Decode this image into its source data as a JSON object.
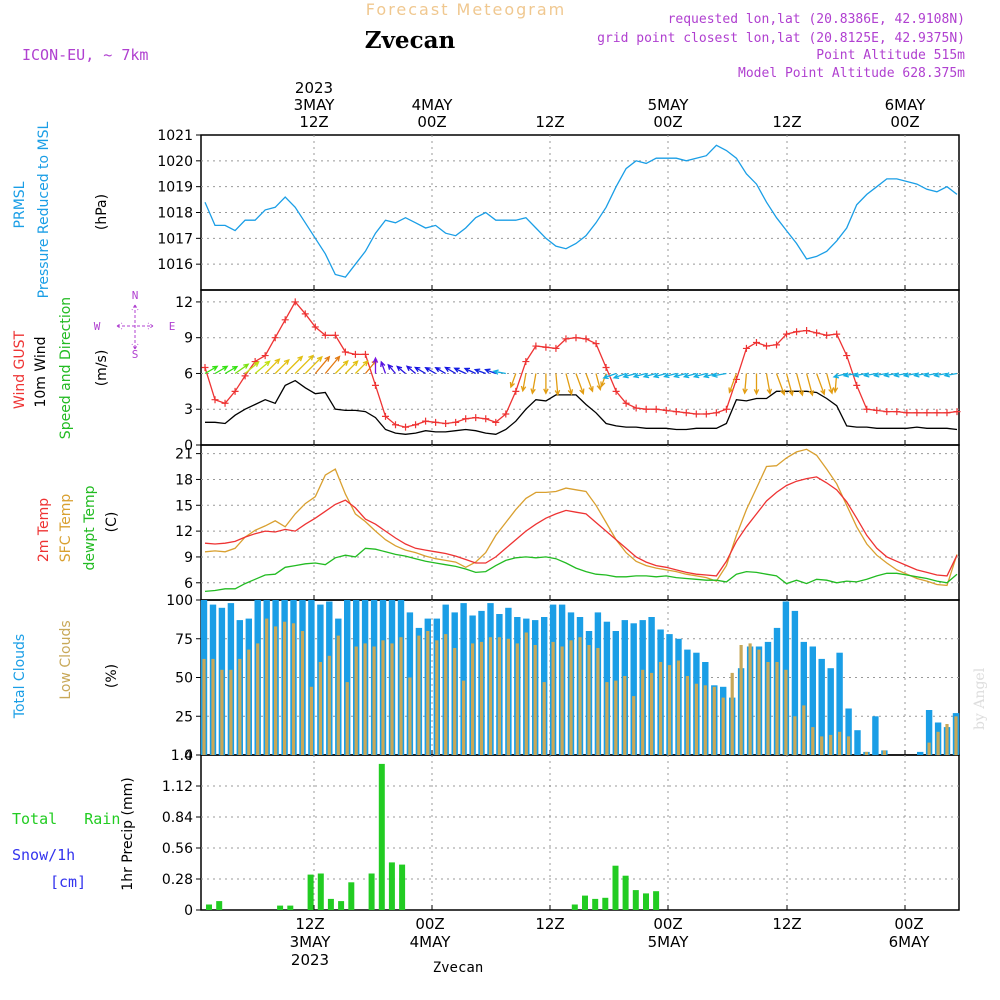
{
  "header": {
    "super_title": "Forecast Meteogram",
    "location": "Zvecan",
    "model": "ICON-EU, ~ 7km",
    "requested": "requested lon,lat (20.8386E, 42.9108N)",
    "grid_point": "grid point closest lon,lat (20.8125E, 42.9375N)",
    "point_altitude": "Point Altitude 515m",
    "model_altitude": "Model Point Altitude 628.375m",
    "footer_name": "Zvecan",
    "watermark": "by Angel"
  },
  "time_axis": {
    "top": [
      {
        "line1": "2023",
        "line2": "3MAY",
        "line3": "12Z"
      },
      {
        "line1": "",
        "line2": "4MAY",
        "line3": "00Z"
      },
      {
        "line1": "",
        "line2": "",
        "line3": "12Z"
      },
      {
        "line1": "",
        "line2": "5MAY",
        "line3": "00Z"
      },
      {
        "line1": "",
        "line2": "",
        "line3": "12Z"
      },
      {
        "line1": "",
        "line2": "6MAY",
        "line3": "00Z"
      }
    ],
    "bottom": [
      {
        "line1": "12Z",
        "line2": "3MAY",
        "line3": "2023"
      },
      {
        "line1": "00Z",
        "line2": "4MAY",
        "line3": ""
      },
      {
        "line1": "12Z",
        "line2": "",
        "line3": ""
      },
      {
        "line1": "00Z",
        "line2": "5MAY",
        "line3": ""
      },
      {
        "line1": "12Z",
        "line2": "",
        "line3": ""
      },
      {
        "line1": "00Z",
        "line2": "6MAY",
        "line3": ""
      }
    ]
  },
  "colors": {
    "pressure": "#1a9ee6",
    "gust": "#ee3333",
    "wind": "#000000",
    "wind_dir_label": "#22bb22",
    "temp2m": "#ee3333",
    "sfc_temp": "#d9a030",
    "dewpt": "#22bb22",
    "total_clouds": "#1a9ee6",
    "low_clouds": "#c8a858",
    "rain": "#22cc22",
    "snow_label": "#3333ee",
    "header_purple": "#b040d0",
    "super_title": "#f0c890"
  },
  "chart_data": [
    {
      "type": "line",
      "panel": "pressure",
      "ylabel_lines": [
        "PRMSL",
        "Pressure Reduced to MSL"
      ],
      "unit": "(hPa)",
      "ylim": [
        1015,
        1021
      ],
      "ticks": [
        1016,
        1017,
        1018,
        1019,
        1020,
        1021
      ],
      "series": [
        {
          "name": "PRMSL",
          "values": [
            1018.4,
            1017.5,
            1017.5,
            1017.3,
            1017.7,
            1017.7,
            1018.1,
            1018.2,
            1018.6,
            1018.2,
            1017.6,
            1017.0,
            1016.4,
            1015.6,
            1015.5,
            1016.0,
            1016.5,
            1017.2,
            1017.7,
            1017.6,
            1017.8,
            1017.6,
            1017.4,
            1017.5,
            1017.2,
            1017.1,
            1017.4,
            1017.8,
            1018.0,
            1017.7,
            1017.7,
            1017.7,
            1017.8,
            1017.4,
            1017.0,
            1016.7,
            1016.6,
            1016.8,
            1017.1,
            1017.6,
            1018.2,
            1019.0,
            1019.7,
            1020.0,
            1019.9,
            1020.1,
            1020.1,
            1020.1,
            1020.0,
            1020.1,
            1020.2,
            1020.6,
            1020.4,
            1020.1,
            1019.5,
            1019.1,
            1018.4,
            1017.8,
            1017.3,
            1016.8,
            1016.2,
            1016.3,
            1016.5,
            1016.9,
            1017.4,
            1018.3,
            1018.7,
            1019.0,
            1019.3,
            1019.3,
            1019.2,
            1019.1,
            1018.9,
            1018.8,
            1019.0,
            1018.7
          ]
        }
      ]
    },
    {
      "type": "line",
      "panel": "wind",
      "ylabel_lines": [
        "Wind GUST",
        "10m Wind",
        "Speed and Direction"
      ],
      "unit": "(m/s)",
      "compass": {
        "n": "N",
        "s": "S",
        "w": "W",
        "e": "E"
      },
      "ylim": [
        0,
        13
      ],
      "ticks": [
        0,
        3,
        6,
        9,
        12
      ],
      "series": [
        {
          "name": "Wind GUST",
          "values": [
            6.5,
            3.8,
            3.5,
            4.5,
            5.8,
            7.0,
            7.5,
            9.0,
            10.5,
            12.0,
            11.0,
            9.9,
            9.2,
            9.2,
            7.8,
            7.6,
            7.6,
            5.0,
            2.4,
            1.7,
            1.5,
            1.7,
            2.0,
            1.9,
            1.8,
            1.9,
            2.2,
            2.3,
            2.2,
            1.9,
            2.6,
            4.5,
            7.0,
            8.3,
            8.2,
            8.1,
            8.9,
            9.0,
            8.9,
            8.5,
            6.5,
            4.5,
            3.5,
            3.1,
            3.0,
            3.0,
            2.9,
            2.8,
            2.7,
            2.6,
            2.6,
            2.7,
            3.0,
            5.5,
            8.1,
            8.6,
            8.3,
            8.4,
            9.3,
            9.5,
            9.6,
            9.4,
            9.2,
            9.3,
            7.5,
            5.0,
            3.0,
            2.9,
            2.8,
            2.8,
            2.7,
            2.7,
            2.7,
            2.7,
            2.7,
            2.8
          ]
        },
        {
          "name": "10m Wind",
          "values": [
            1.9,
            1.9,
            1.8,
            2.5,
            3.0,
            3.4,
            3.8,
            3.5,
            5.0,
            5.4,
            4.8,
            4.3,
            4.4,
            3.0,
            2.9,
            2.9,
            2.8,
            2.3,
            1.3,
            1.0,
            0.9,
            1.0,
            1.2,
            1.1,
            1.1,
            1.2,
            1.3,
            1.2,
            1.0,
            0.9,
            1.3,
            2.0,
            3.0,
            3.8,
            3.7,
            4.2,
            4.2,
            4.2,
            3.4,
            2.7,
            1.8,
            1.6,
            1.5,
            1.5,
            1.4,
            1.4,
            1.4,
            1.3,
            1.3,
            1.4,
            1.4,
            1.4,
            1.8,
            3.8,
            3.7,
            3.9,
            3.9,
            4.5,
            4.5,
            4.5,
            4.5,
            4.4,
            3.9,
            3.3,
            1.6,
            1.5,
            1.5,
            1.4,
            1.4,
            1.4,
            1.4,
            1.5,
            1.4,
            1.4,
            1.4,
            1.3
          ]
        }
      ],
      "direction_deg": [
        240,
        240,
        240,
        235,
        230,
        230,
        225,
        225,
        225,
        225,
        225,
        220,
        220,
        225,
        225,
        225,
        220,
        180,
        160,
        140,
        130,
        130,
        120,
        120,
        120,
        120,
        115,
        115,
        110,
        110,
        100,
        20,
        10,
        10,
        0,
        355,
        345,
        340,
        340,
        345,
        20,
        70,
        70,
        75,
        75,
        75,
        75,
        75,
        75,
        75,
        75,
        75,
        80,
        20,
        5,
        0,
        350,
        340,
        345,
        345,
        345,
        340,
        345,
        5,
        75,
        80,
        80,
        80,
        80,
        80,
        80,
        80,
        80,
        80,
        80,
        80
      ]
    },
    {
      "type": "line",
      "panel": "temperature",
      "ylabel_lines": [
        "2m Temp",
        "SFC Temp",
        "dewpt Temp"
      ],
      "unit": "(C)",
      "ylim": [
        4,
        22
      ],
      "ticks": [
        6,
        9,
        12,
        15,
        18,
        21
      ],
      "series": [
        {
          "name": "2m Temp",
          "values": [
            10.6,
            10.5,
            10.6,
            10.8,
            11.3,
            11.7,
            12.0,
            11.9,
            12.2,
            12.0,
            12.8,
            13.5,
            14.3,
            15.1,
            15.6,
            14.7,
            13.4,
            12.8,
            12.0,
            11.2,
            10.5,
            10.0,
            9.8,
            9.6,
            9.4,
            9.1,
            8.7,
            8.3,
            8.3,
            9.0,
            10.0,
            11.0,
            12.0,
            12.8,
            13.5,
            14.0,
            14.4,
            14.2,
            14.0,
            13.0,
            12.0,
            11.0,
            10.0,
            9.0,
            8.4,
            8.0,
            7.8,
            7.5,
            7.2,
            7.0,
            6.9,
            6.8,
            8.5,
            10.8,
            12.5,
            14.0,
            15.5,
            16.5,
            17.3,
            17.8,
            18.1,
            18.3,
            17.6,
            16.8,
            15.4,
            13.5,
            11.5,
            10.0,
            9.0,
            8.5,
            8.0,
            7.5,
            7.2,
            6.9,
            6.8,
            9.2
          ]
        },
        {
          "name": "SFC Temp",
          "values": [
            9.6,
            9.7,
            9.6,
            10.0,
            11.3,
            12.1,
            12.6,
            13.2,
            12.5,
            14.0,
            15.2,
            16.0,
            18.5,
            19.2,
            16.3,
            14.0,
            13.1,
            12.0,
            11.0,
            10.3,
            9.8,
            9.5,
            9.1,
            8.8,
            8.6,
            8.4,
            7.8,
            8.4,
            9.5,
            11.5,
            13.0,
            14.5,
            15.8,
            16.5,
            16.5,
            16.6,
            17.0,
            16.8,
            16.6,
            15.0,
            13.0,
            11.0,
            9.5,
            8.5,
            8.0,
            7.7,
            7.5,
            7.3,
            7.0,
            6.8,
            6.6,
            6.2,
            8.0,
            11.5,
            14.5,
            17.0,
            19.5,
            19.6,
            20.5,
            21.2,
            21.5,
            20.8,
            19.2,
            17.5,
            15.0,
            12.5,
            10.5,
            9.2,
            8.3,
            7.5,
            7.0,
            6.5,
            6.2,
            5.8,
            5.7,
            9.3
          ]
        },
        {
          "name": "dewpt Temp",
          "values": [
            5.0,
            5.1,
            5.3,
            5.3,
            5.9,
            6.4,
            6.9,
            7.0,
            7.8,
            8.0,
            8.2,
            8.3,
            8.1,
            8.9,
            9.2,
            9.0,
            10.0,
            9.9,
            9.6,
            9.3,
            9.1,
            8.8,
            8.5,
            8.3,
            8.1,
            7.9,
            7.6,
            7.2,
            7.3,
            8.0,
            8.6,
            8.9,
            9.0,
            8.9,
            9.0,
            8.8,
            8.3,
            7.7,
            7.3,
            7.0,
            6.9,
            6.7,
            6.7,
            6.8,
            6.8,
            6.7,
            6.8,
            6.6,
            6.5,
            6.4,
            6.3,
            6.3,
            6.1,
            7.0,
            7.3,
            7.2,
            7.0,
            6.8,
            5.9,
            6.3,
            5.9,
            6.4,
            6.3,
            6.0,
            6.2,
            6.1,
            6.4,
            6.8,
            7.1,
            7.1,
            6.9,
            6.7,
            6.5,
            6.2,
            6.0,
            7.0
          ]
        }
      ]
    },
    {
      "type": "bar",
      "panel": "clouds",
      "ylabel_lines": [
        "Total Clouds",
        "Low Clouds"
      ],
      "unit": "(%)",
      "ylim": [
        0,
        100
      ],
      "ticks": [
        0,
        25,
        50,
        75,
        100
      ],
      "series": [
        {
          "name": "Total Clouds",
          "values": [
            100,
            97,
            95,
            98,
            87,
            88,
            100,
            100,
            100,
            100,
            100,
            100,
            100,
            97,
            99,
            88,
            100,
            100,
            100,
            100,
            100,
            100,
            100,
            92,
            82,
            88,
            88,
            97,
            92,
            98,
            90,
            93,
            98,
            91,
            95,
            89,
            88,
            87,
            89,
            97,
            97,
            92,
            89,
            80,
            92,
            86,
            80,
            87,
            85,
            87,
            89,
            81,
            78,
            75,
            68,
            66,
            60,
            45,
            44,
            37,
            56,
            70,
            70,
            73,
            82,
            99,
            93,
            73,
            70,
            62,
            56,
            66,
            30,
            16,
            2,
            25,
            3,
            0,
            0,
            0,
            2,
            29,
            21,
            18,
            27
          ]
        },
        {
          "name": "Low Clouds",
          "values": [
            62,
            62,
            55,
            55,
            62,
            68,
            72,
            88,
            83,
            86,
            85,
            80,
            44,
            60,
            64,
            77,
            47,
            70,
            72,
            70,
            74,
            72,
            76,
            50,
            77,
            80,
            74,
            78,
            69,
            48,
            72,
            73,
            76,
            76,
            75,
            72,
            79,
            71,
            47,
            73,
            70,
            74,
            76,
            71,
            69,
            47,
            48,
            51,
            38,
            55,
            53,
            60,
            58,
            61,
            51,
            46,
            45,
            44,
            37,
            53,
            71,
            72,
            68,
            60,
            60,
            55,
            25,
            32,
            18,
            12,
            13,
            15,
            12,
            0,
            2,
            0,
            3,
            0,
            0,
            0,
            0,
            8,
            15,
            20,
            25
          ]
        }
      ]
    },
    {
      "type": "bar",
      "panel": "precipitation",
      "ylabel_lines": [
        "Total   Rain",
        "Snow/1h",
        "[cm]"
      ],
      "axis_label": "1hr Precip (mm)",
      "ylim": [
        0,
        1.4
      ],
      "ticks": [
        "0",
        "0.28",
        "0.56",
        "0.84",
        "1.12",
        "1.4"
      ],
      "series": [
        {
          "name": "Total Rain",
          "values": [
            0.05,
            0.08,
            0,
            0,
            0,
            0,
            0,
            0.04,
            0.04,
            0,
            0.32,
            0.33,
            0.1,
            0.08,
            0.25,
            0,
            0.33,
            1.32,
            0.43,
            0.41,
            0,
            0,
            0,
            0,
            0,
            0,
            0,
            0,
            0,
            0,
            0,
            0,
            0,
            0,
            0,
            0,
            0.05,
            0.13,
            0.1,
            0.11,
            0.4,
            0.31,
            0.18,
            0.15,
            0.17,
            0,
            0,
            0,
            0,
            0,
            0,
            0,
            0,
            0,
            0,
            0,
            0,
            0,
            0,
            0,
            0,
            0,
            0,
            0,
            0
          ]
        }
      ]
    }
  ]
}
